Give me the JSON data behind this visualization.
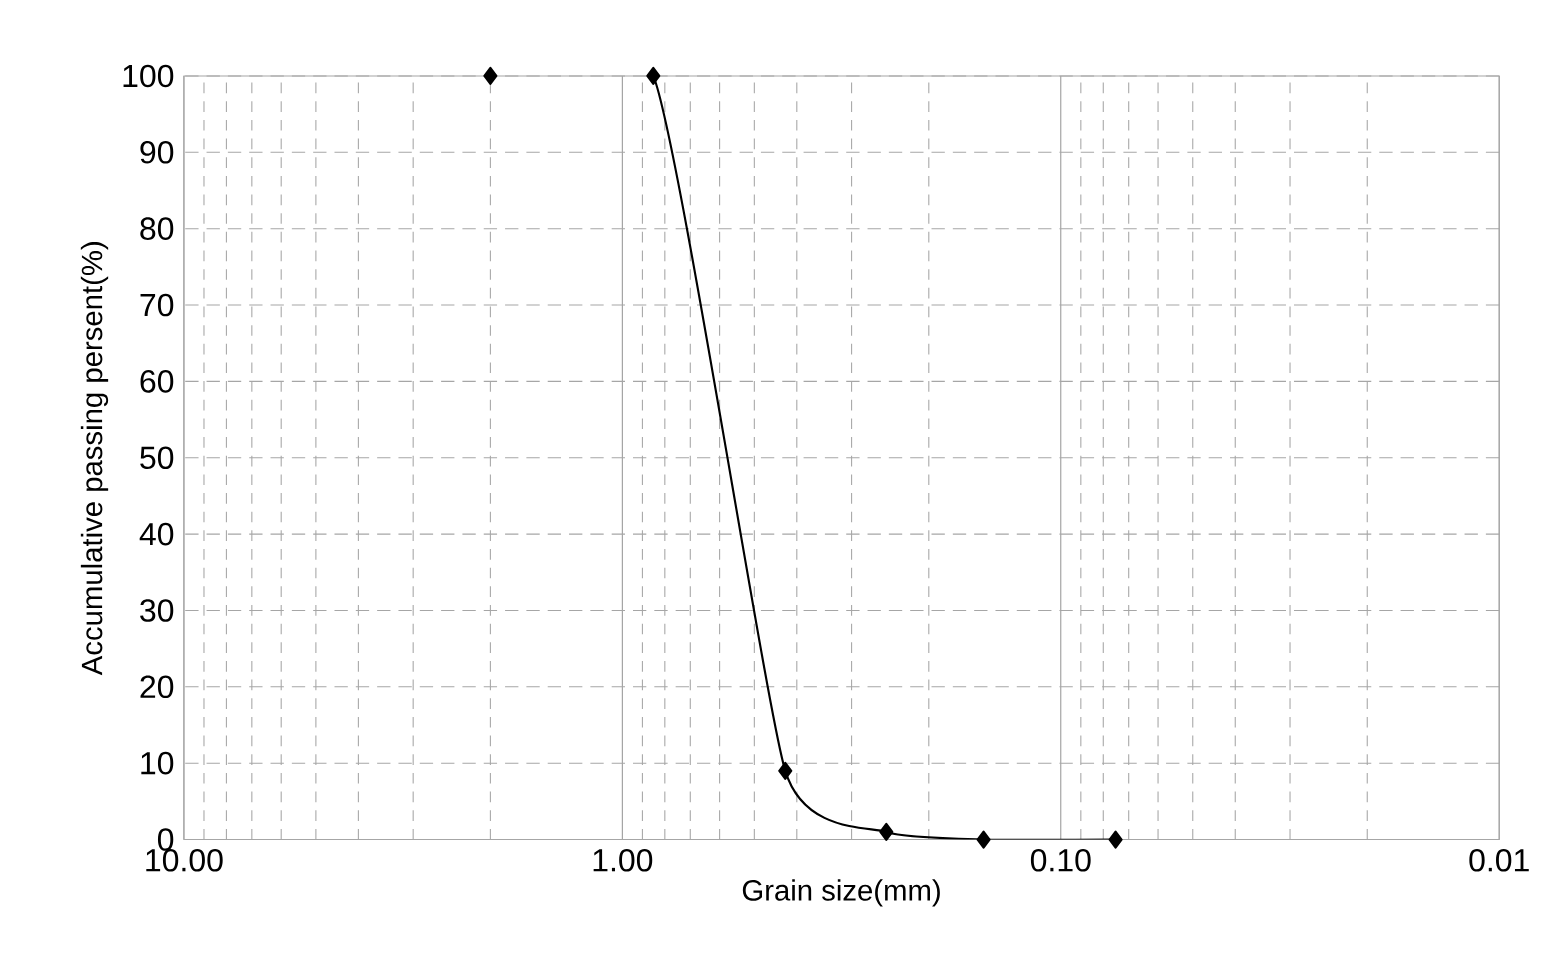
{
  "chart_data": {
    "type": "line",
    "xlabel": "Grain size(mm)",
    "ylabel": "Accumulative passing persent(%)",
    "x": [
      2.0,
      0.85,
      0.425,
      0.25,
      0.15,
      0.075
    ],
    "series": [
      {
        "color": "#000000",
        "values": [
          100,
          100,
          9,
          1,
          0,
          0
        ]
      }
    ],
    "log": "x",
    "xlim": [
      10,
      0.01
    ],
    "xticks": [
      {
        "value": 10,
        "label": "10.00"
      },
      {
        "value": 1,
        "label": "1.00"
      },
      {
        "value": 0.1,
        "label": "0.10"
      },
      {
        "value": 0.01,
        "label": "0.01"
      }
    ],
    "ylim": [
      0,
      100
    ],
    "yticks": [
      0,
      10,
      20,
      30,
      40,
      50,
      60,
      70,
      80,
      90,
      100
    ],
    "grid": true,
    "marker": "diamond",
    "line_style": "solid"
  }
}
